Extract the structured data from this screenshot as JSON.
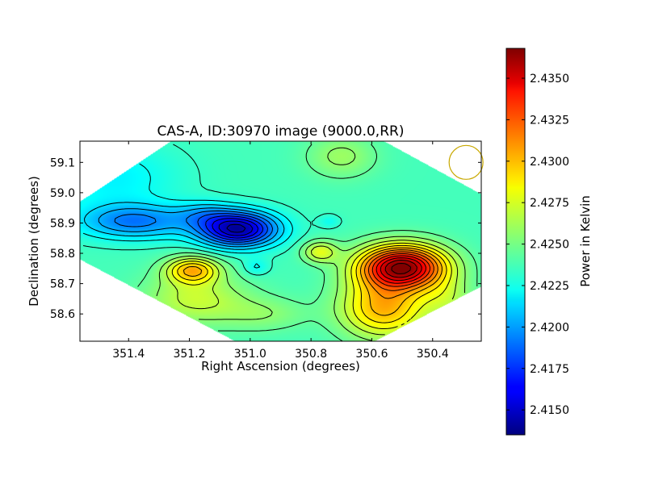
{
  "chart_data": {
    "type": "heatmap",
    "title": "CAS-A, ID:30970 image (9000.0,RR)",
    "xlabel": "Right Ascension (degrees)",
    "ylabel": "Declination (degrees)",
    "xlim": [
      351.56,
      350.24
    ],
    "ylim": [
      58.51,
      59.17
    ],
    "x_ticks": [
      351.4,
      351.2,
      351.0,
      350.8,
      350.6,
      350.4
    ],
    "x_tick_labels": [
      "351.4",
      "351.2",
      "351.0",
      "350.8",
      "350.6",
      "350.4"
    ],
    "y_ticks": [
      58.6,
      58.7,
      58.8,
      58.9,
      59.0,
      59.1
    ],
    "y_tick_labels": [
      "58.6",
      "58.7",
      "58.8",
      "58.9",
      "59.0",
      "59.1"
    ],
    "colorbar": {
      "label": "Power in Kelvin",
      "colormap": "jet",
      "range": [
        2.4135,
        2.4368
      ],
      "ticks": [
        2.415,
        2.4175,
        2.42,
        2.4225,
        2.425,
        2.4275,
        2.43,
        2.4325,
        2.435
      ],
      "tick_labels": [
        "2.4150",
        "2.4175",
        "2.4200",
        "2.4225",
        "2.4250",
        "2.4275",
        "2.4300",
        "2.4325",
        "2.4350"
      ]
    },
    "baseline": 2.4238,
    "sources": [
      {
        "ra": 351.04,
        "dec": 58.88,
        "amp": -0.0095,
        "width_ra": 0.09,
        "width_dec": 0.04
      },
      {
        "ra": 351.38,
        "dec": 58.905,
        "amp": -0.0045,
        "width_ra": 0.13,
        "width_dec": 0.04
      },
      {
        "ra": 351.15,
        "dec": 58.93,
        "amp": -0.002,
        "width_ra": 0.07,
        "width_dec": 0.03
      },
      {
        "ra": 351.45,
        "dec": 59.05,
        "amp": -0.0018,
        "width_ra": 0.15,
        "width_dec": 0.08
      },
      {
        "ra": 350.5,
        "dec": 58.755,
        "amp": 0.0125,
        "width_ra": 0.1,
        "width_dec": 0.05
      },
      {
        "ra": 350.56,
        "dec": 58.62,
        "amp": 0.006,
        "width_ra": 0.1,
        "width_dec": 0.07
      },
      {
        "ra": 350.77,
        "dec": 58.805,
        "amp": 0.0035,
        "width_ra": 0.04,
        "width_dec": 0.025
      },
      {
        "ra": 351.19,
        "dec": 58.745,
        "amp": 0.0055,
        "width_ra": 0.06,
        "width_dec": 0.03
      },
      {
        "ra": 351.18,
        "dec": 58.65,
        "amp": 0.003,
        "width_ra": 0.12,
        "width_dec": 0.06
      },
      {
        "ra": 350.7,
        "dec": 59.12,
        "amp": 0.002,
        "width_ra": 0.08,
        "width_dec": 0.05
      },
      {
        "ra": 350.95,
        "dec": 58.6,
        "amp": 0.0015,
        "width_ra": 0.1,
        "width_dec": 0.04
      },
      {
        "ra": 350.35,
        "dec": 58.65,
        "amp": 0.002,
        "width_ra": 0.06,
        "width_dec": 0.05
      },
      {
        "ra": 350.98,
        "dec": 58.755,
        "amp": -0.0015,
        "width_ra": 0.03,
        "width_dec": 0.02
      },
      {
        "ra": 350.74,
        "dec": 58.905,
        "amp": -0.0012,
        "width_ra": 0.025,
        "width_dec": 0.015
      }
    ],
    "beam": {
      "ra": 350.29,
      "dec": 59.1,
      "color": "#c8a800"
    },
    "grid": false
  }
}
